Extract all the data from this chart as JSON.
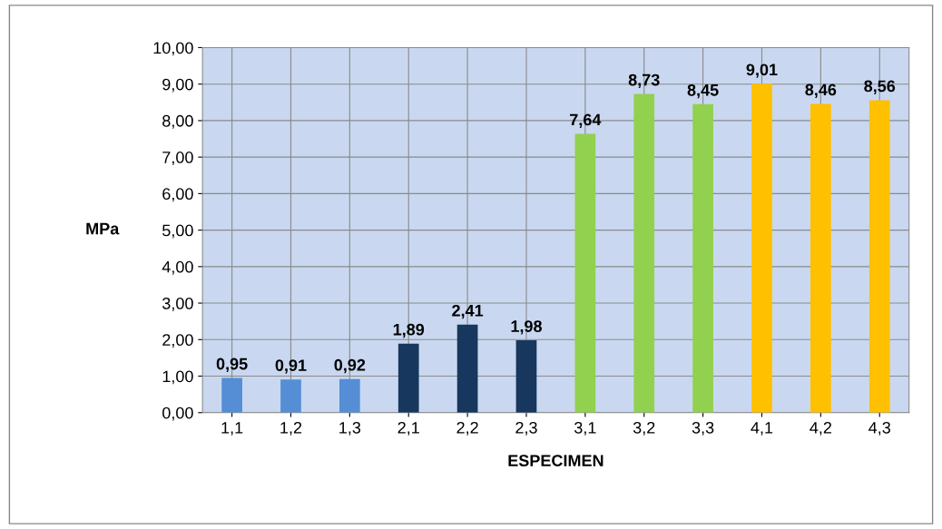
{
  "chart_data": {
    "type": "bar",
    "xlabel": "ESPECIMEN",
    "ylabel": "MPa",
    "categories": [
      "1,1",
      "1,2",
      "1,3",
      "2,1",
      "2,2",
      "2,3",
      "3,1",
      "3,2",
      "3,3",
      "4,1",
      "4,2",
      "4,3"
    ],
    "values": [
      0.95,
      0.91,
      0.92,
      1.89,
      2.41,
      1.98,
      7.64,
      8.73,
      8.45,
      9.01,
      8.46,
      8.56
    ],
    "colors": [
      "#558ed5",
      "#558ed5",
      "#558ed5",
      "#17375e",
      "#17375e",
      "#17375e",
      "#92d050",
      "#92d050",
      "#92d050",
      "#ffc000",
      "#ffc000",
      "#ffc000"
    ],
    "value_labels": [
      "0,95",
      "0,91",
      "0,92",
      "1,89",
      "2,41",
      "1,98",
      "7,64",
      "8,73",
      "8,45",
      "9,01",
      "8,46",
      "8,56"
    ],
    "ylim": [
      0,
      10
    ],
    "yticks": [
      {
        "value": 0,
        "label": "0,00"
      },
      {
        "value": 1,
        "label": "1,00"
      },
      {
        "value": 2,
        "label": "2,00"
      },
      {
        "value": 3,
        "label": "3,00"
      },
      {
        "value": 4,
        "label": "4,00"
      },
      {
        "value": 5,
        "label": "5,00"
      },
      {
        "value": 6,
        "label": "6,00"
      },
      {
        "value": 7,
        "label": "7,00"
      },
      {
        "value": 8,
        "label": "8,00"
      },
      {
        "value": 9,
        "label": "9,00"
      },
      {
        "value": 10,
        "label": "10,00"
      }
    ],
    "grid": true,
    "legend": false
  }
}
